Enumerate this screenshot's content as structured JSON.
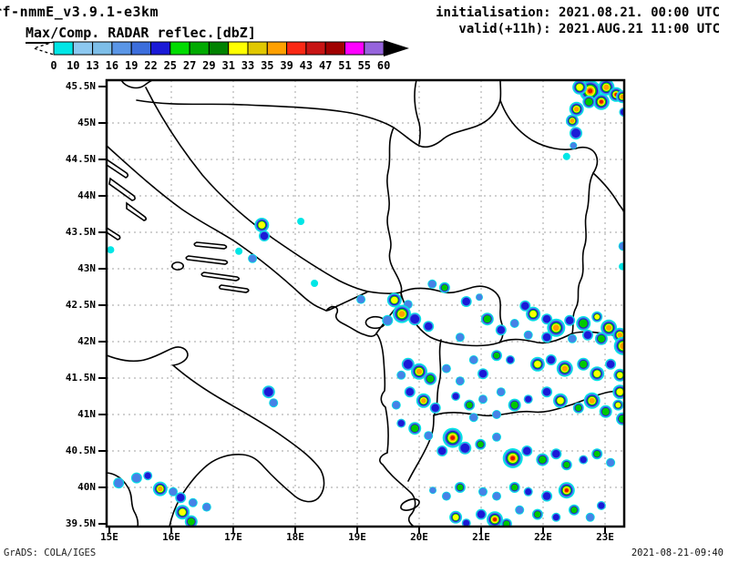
{
  "header": {
    "model_title": "rf-nmmE_v3.9.1-e3km",
    "init_label": "initialisation: 2021.08.21. 00:00 UTC",
    "valid_label": "valid(+11h): 2021.AUG.21 11:00 UTC",
    "field_label": "Max/Comp. RADAR reflec.[dbZ]"
  },
  "footer": {
    "left": "GrADS: COLA/IGES",
    "right": "2021-08-21-09:40"
  },
  "map": {
    "lat_labels": [
      "45.5N",
      "45N",
      "44.5N",
      "44N",
      "43.5N",
      "43N",
      "42.5N",
      "42N",
      "41.5N",
      "41N",
      "40.5N",
      "40N",
      "39.5N"
    ],
    "lon_labels": [
      "15E",
      "16E",
      "17E",
      "18E",
      "19E",
      "20E",
      "21E",
      "22E",
      "23E"
    ]
  },
  "chart_data": {
    "type": "heatmap",
    "title": "Max/Comp. RADAR reflec.[dbZ]",
    "subtitle_left": "rf-nmmE_v3.9.1-e3km",
    "init_time": "2021.08.21. 00:00 UTC",
    "valid_time": "2021.AUG.21 11:00 UTC (+11h)",
    "lon_range": [
      15.0,
      23.35
    ],
    "lat_range": [
      39.45,
      45.6
    ],
    "grid": "dotted, 1 deg lon x 0.5 deg lat",
    "colorbar": {
      "units": "dbZ",
      "levels": [
        0,
        10,
        13,
        16,
        19,
        22,
        25,
        27,
        29,
        31,
        33,
        35,
        39,
        43,
        47,
        51,
        55,
        60
      ],
      "colors": [
        "#00E6E6",
        "#8CC8F0",
        "#7DBEE8",
        "#5A96E6",
        "#3C6EDC",
        "#1A1AD7",
        "#00DC00",
        "#00AA00",
        "#008200",
        "#FFFF00",
        "#E1C800",
        "#FFA000",
        "#FA2814",
        "#C81414",
        "#A00000",
        "#FF00FF",
        "#9664DC"
      ]
    },
    "cell_palette": [
      "#00E6E6",
      "#4682E6",
      "#1A1AD7",
      "#00C800",
      "#FFFF00",
      "#FFA000",
      "#E11400"
    ],
    "cells_note": "each cell = [lon, lat, radius_px, intensity_level 1..7 (cyan..red core)]",
    "cells": [
      [
        22.76,
        45.44,
        12,
        7
      ],
      [
        23.02,
        45.49,
        9,
        6
      ],
      [
        22.59,
        45.49,
        8,
        5
      ],
      [
        23.18,
        45.39,
        8,
        7
      ],
      [
        22.94,
        45.29,
        9,
        7
      ],
      [
        22.74,
        45.29,
        7,
        4
      ],
      [
        22.54,
        45.19,
        8,
        6
      ],
      [
        22.47,
        45.03,
        7,
        6
      ],
      [
        22.53,
        44.86,
        7,
        3
      ],
      [
        22.49,
        44.69,
        4,
        2
      ],
      [
        22.38,
        44.54,
        4,
        1
      ],
      [
        23.28,
        45.36,
        7,
        6
      ],
      [
        23.3,
        45.15,
        5,
        3
      ],
      [
        17.46,
        43.6,
        8,
        5
      ],
      [
        17.5,
        43.45,
        6,
        3
      ],
      [
        18.09,
        43.65,
        4,
        1
      ],
      [
        17.09,
        43.24,
        4,
        1
      ],
      [
        17.31,
        43.14,
        5,
        2
      ],
      [
        18.31,
        42.8,
        4,
        1
      ],
      [
        19.06,
        42.58,
        5,
        2
      ],
      [
        15.02,
        43.26,
        4,
        1
      ],
      [
        17.57,
        41.31,
        7,
        3
      ],
      [
        17.65,
        41.16,
        5,
        2
      ],
      [
        20.21,
        42.79,
        5,
        2
      ],
      [
        20.41,
        42.74,
        6,
        4
      ],
      [
        19.6,
        42.57,
        8,
        5
      ],
      [
        19.82,
        42.51,
        5,
        2
      ],
      [
        20.76,
        42.55,
        6,
        3
      ],
      [
        20.97,
        42.61,
        4,
        2
      ],
      [
        21.71,
        42.49,
        6,
        3
      ],
      [
        19.72,
        42.38,
        10,
        6
      ],
      [
        19.93,
        42.31,
        7,
        3
      ],
      [
        19.49,
        42.29,
        6,
        2
      ],
      [
        20.15,
        42.21,
        6,
        3
      ],
      [
        20.66,
        42.06,
        5,
        2
      ],
      [
        21.1,
        42.31,
        7,
        4
      ],
      [
        21.32,
        42.16,
        6,
        3
      ],
      [
        21.54,
        42.25,
        5,
        2
      ],
      [
        21.84,
        42.38,
        8,
        5
      ],
      [
        22.06,
        42.31,
        6,
        3
      ],
      [
        22.21,
        42.19,
        10,
        6
      ],
      [
        22.43,
        42.29,
        6,
        3
      ],
      [
        22.65,
        42.25,
        8,
        4
      ],
      [
        22.87,
        42.34,
        6,
        5
      ],
      [
        23.06,
        42.19,
        9,
        6
      ],
      [
        23.24,
        42.09,
        8,
        6
      ],
      [
        22.94,
        42.04,
        7,
        4
      ],
      [
        22.72,
        42.09,
        6,
        3
      ],
      [
        22.47,
        42.04,
        5,
        2
      ],
      [
        22.06,
        42.06,
        6,
        3
      ],
      [
        21.76,
        42.09,
        5,
        2
      ],
      [
        19.82,
        41.69,
        7,
        3
      ],
      [
        20.0,
        41.59,
        9,
        6
      ],
      [
        20.18,
        41.49,
        7,
        4
      ],
      [
        19.71,
        41.54,
        5,
        2
      ],
      [
        20.44,
        41.63,
        5,
        2
      ],
      [
        20.88,
        41.75,
        5,
        2
      ],
      [
        21.25,
        41.81,
        6,
        4
      ],
      [
        21.47,
        41.75,
        5,
        3
      ],
      [
        21.91,
        41.69,
        8,
        5
      ],
      [
        22.13,
        41.75,
        6,
        3
      ],
      [
        22.35,
        41.63,
        9,
        6
      ],
      [
        22.65,
        41.69,
        7,
        4
      ],
      [
        22.87,
        41.56,
        8,
        5
      ],
      [
        23.09,
        41.69,
        6,
        3
      ],
      [
        23.24,
        41.54,
        7,
        5
      ],
      [
        21.03,
        41.56,
        6,
        3
      ],
      [
        20.66,
        41.46,
        5,
        2
      ],
      [
        19.85,
        41.31,
        6,
        3
      ],
      [
        20.07,
        41.19,
        8,
        6
      ],
      [
        20.26,
        41.09,
        6,
        3
      ],
      [
        19.63,
        41.13,
        5,
        2
      ],
      [
        20.59,
        41.25,
        5,
        3
      ],
      [
        20.81,
        41.13,
        6,
        4
      ],
      [
        21.03,
        41.21,
        5,
        2
      ],
      [
        21.32,
        41.31,
        5,
        2
      ],
      [
        21.54,
        41.13,
        7,
        4
      ],
      [
        21.76,
        41.21,
        5,
        3
      ],
      [
        22.06,
        41.31,
        6,
        3
      ],
      [
        22.28,
        41.19,
        8,
        5
      ],
      [
        22.57,
        41.09,
        6,
        4
      ],
      [
        22.79,
        41.19,
        9,
        6
      ],
      [
        23.01,
        41.04,
        7,
        4
      ],
      [
        23.21,
        41.13,
        6,
        5
      ],
      [
        21.25,
        41.0,
        5,
        2
      ],
      [
        20.88,
        40.96,
        5,
        2
      ],
      [
        20.54,
        40.68,
        11,
        7
      ],
      [
        20.74,
        40.54,
        7,
        3
      ],
      [
        20.37,
        40.5,
        6,
        3
      ],
      [
        20.99,
        40.59,
        6,
        4
      ],
      [
        21.25,
        40.69,
        5,
        2
      ],
      [
        21.51,
        40.4,
        11,
        7
      ],
      [
        21.74,
        40.5,
        6,
        3
      ],
      [
        21.99,
        40.38,
        7,
        4
      ],
      [
        22.21,
        40.46,
        6,
        3
      ],
      [
        22.38,
        40.31,
        6,
        4
      ],
      [
        22.65,
        40.38,
        5,
        3
      ],
      [
        22.87,
        40.46,
        6,
        4
      ],
      [
        23.09,
        40.34,
        5,
        2
      ],
      [
        19.93,
        40.81,
        7,
        4
      ],
      [
        20.15,
        40.71,
        5,
        2
      ],
      [
        19.71,
        40.88,
        5,
        3
      ],
      [
        22.38,
        39.96,
        9,
        7
      ],
      [
        22.06,
        39.88,
        6,
        3
      ],
      [
        21.76,
        39.94,
        5,
        3
      ],
      [
        21.54,
        40.0,
        6,
        4
      ],
      [
        21.25,
        39.88,
        5,
        2
      ],
      [
        21.03,
        39.94,
        5,
        2
      ],
      [
        20.66,
        40.0,
        6,
        4
      ],
      [
        20.44,
        39.88,
        5,
        2
      ],
      [
        20.22,
        39.96,
        4,
        2
      ],
      [
        21.22,
        39.56,
        9,
        7
      ],
      [
        21.0,
        39.63,
        6,
        3
      ],
      [
        21.41,
        39.5,
        6,
        4
      ],
      [
        20.59,
        39.59,
        7,
        5
      ],
      [
        20.76,
        39.51,
        5,
        3
      ],
      [
        21.62,
        39.69,
        5,
        2
      ],
      [
        21.91,
        39.63,
        6,
        4
      ],
      [
        22.21,
        39.59,
        5,
        3
      ],
      [
        22.5,
        39.69,
        6,
        4
      ],
      [
        22.76,
        39.59,
        5,
        2
      ],
      [
        22.94,
        39.75,
        5,
        3
      ],
      [
        15.44,
        40.13,
        6,
        2
      ],
      [
        15.62,
        40.16,
        5,
        3
      ],
      [
        15.15,
        40.06,
        6,
        2
      ],
      [
        15.82,
        39.98,
        8,
        6
      ],
      [
        16.03,
        39.94,
        5,
        2
      ],
      [
        16.15,
        39.86,
        6,
        3
      ],
      [
        16.35,
        39.79,
        5,
        2
      ],
      [
        16.18,
        39.66,
        8,
        5
      ],
      [
        16.32,
        39.53,
        7,
        4
      ],
      [
        16.57,
        39.73,
        5,
        2
      ],
      [
        23.29,
        43.31,
        5,
        2
      ],
      [
        23.28,
        43.03,
        4,
        1
      ],
      [
        23.29,
        41.94,
        10,
        6
      ],
      [
        23.24,
        41.31,
        8,
        5
      ],
      [
        23.28,
        40.94,
        7,
        4
      ]
    ]
  }
}
